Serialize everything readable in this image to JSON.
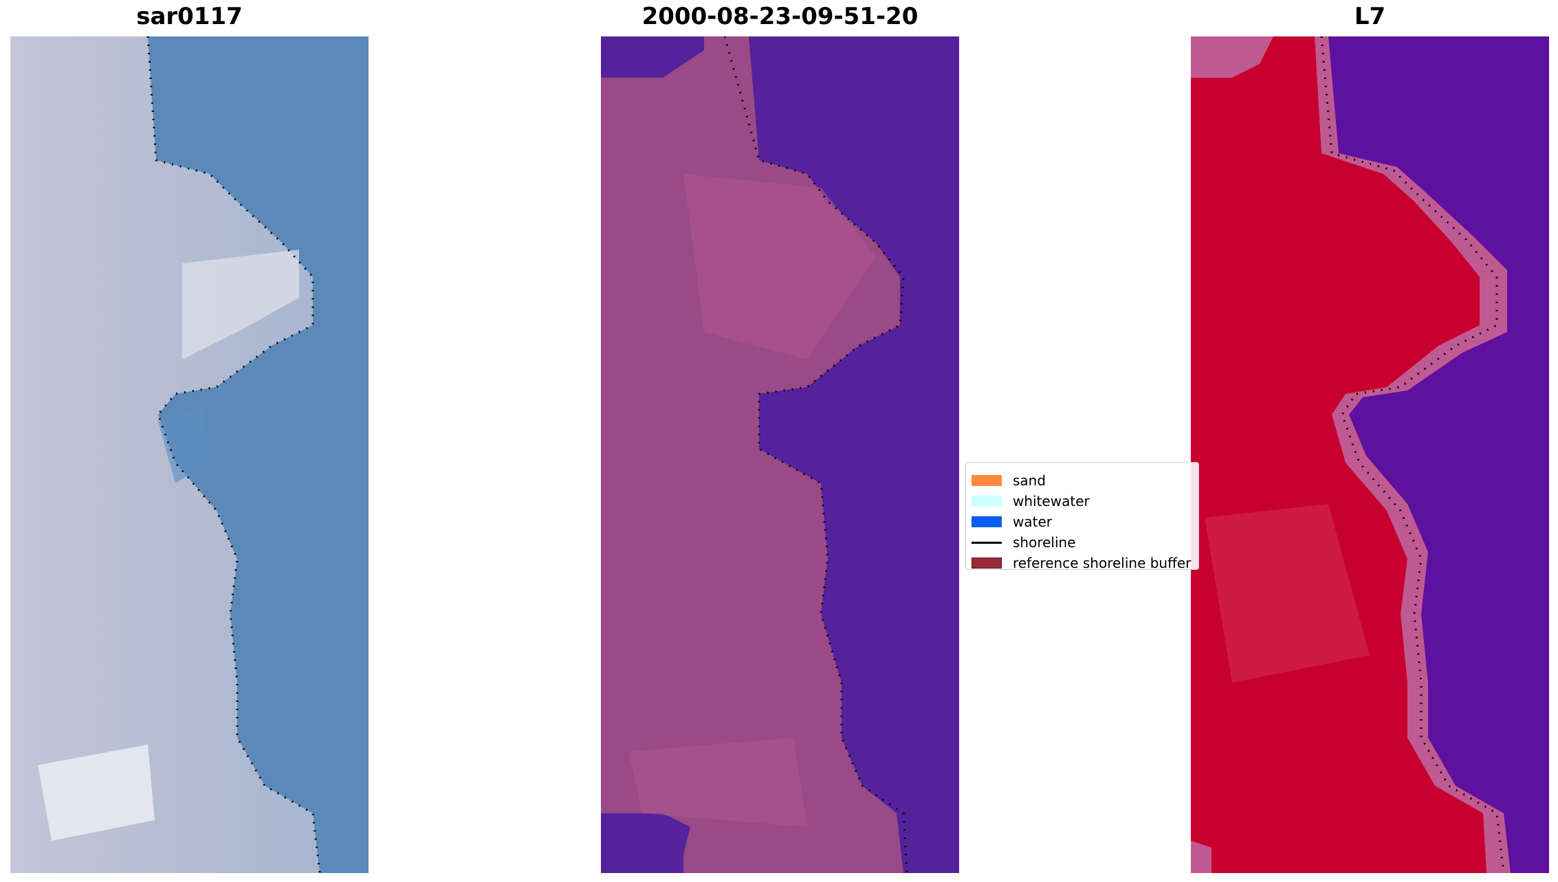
{
  "panels": [
    {
      "title": "sar0117",
      "kind": "rgb"
    },
    {
      "title": "2000-08-23-09-51-20",
      "kind": "classified"
    },
    {
      "title": "L7",
      "kind": "index"
    }
  ],
  "legend": {
    "items": [
      {
        "label": "sand",
        "color": "#ff8a3d",
        "type": "patch"
      },
      {
        "label": "whitewater",
        "color": "#ccffff",
        "type": "patch"
      },
      {
        "label": "water",
        "color": "#0a5ff0",
        "type": "patch"
      },
      {
        "label": "shoreline",
        "color": "#000000",
        "type": "line"
      },
      {
        "label": "reference shoreline buffer",
        "color": "#9b2a36",
        "type": "patch"
      }
    ]
  },
  "colors": {
    "water_blue": "#5c8ab8",
    "sand_grey": "#b7bdd2",
    "classified_land": "#9a4a86",
    "classified_water": "#54229a",
    "index_land": "#c8002e",
    "index_water": "#5e109e",
    "shoreline_dots": "#000000"
  }
}
